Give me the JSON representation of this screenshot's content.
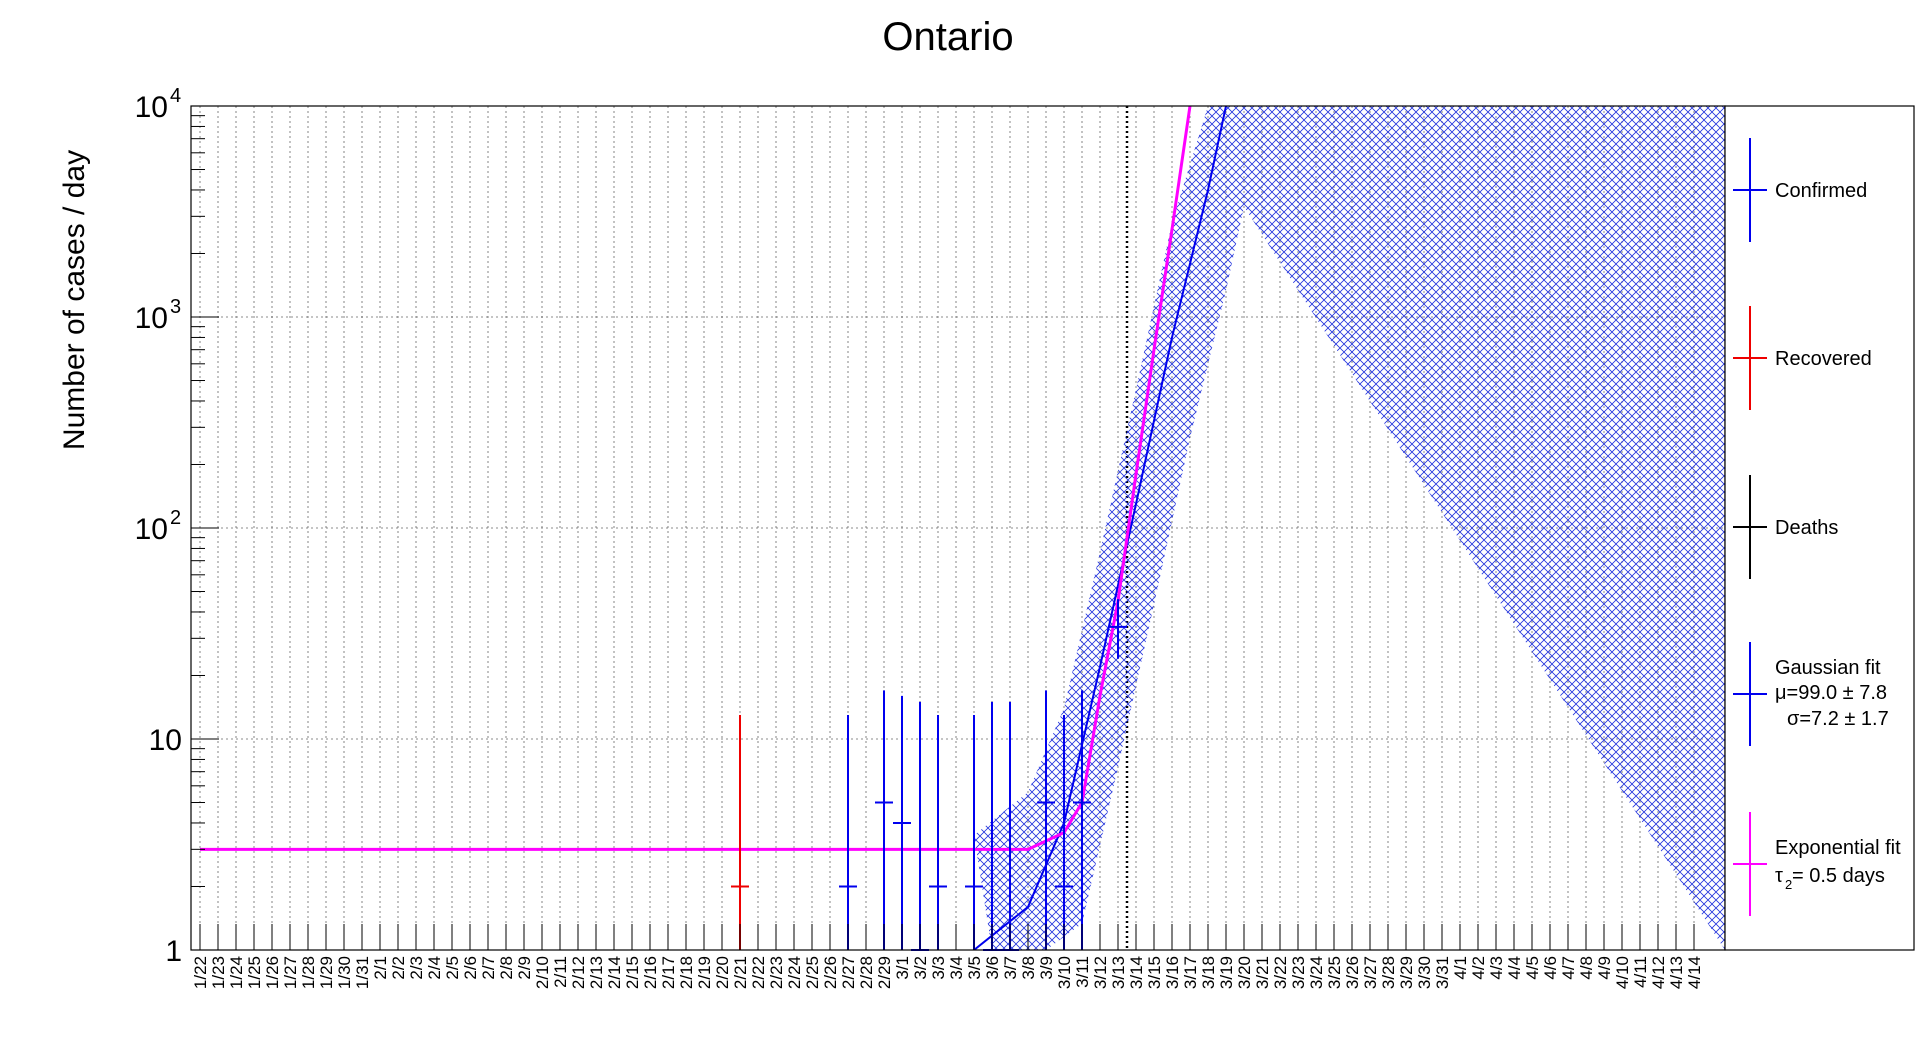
{
  "chart_data": {
    "type": "line",
    "title": "Ontario",
    "ylabel": "Number of cases / day",
    "xlabel": "",
    "y_scale": "log",
    "ylim": [
      1,
      10000
    ],
    "y_ticks": [
      {
        "value": 1,
        "label": "1",
        "exp": ""
      },
      {
        "value": 10,
        "label": "10",
        "exp": ""
      },
      {
        "value": 100,
        "label": "10",
        "exp": "2"
      },
      {
        "value": 1000,
        "label": "10",
        "exp": "3"
      },
      {
        "value": 10000,
        "label": "10",
        "exp": "4"
      }
    ],
    "categories": [
      "1/22",
      "1/23",
      "1/24",
      "1/25",
      "1/26",
      "1/27",
      "1/28",
      "1/29",
      "1/30",
      "1/31",
      "2/1",
      "2/2",
      "2/3",
      "2/4",
      "2/5",
      "2/6",
      "2/7",
      "2/8",
      "2/9",
      "2/10",
      "2/11",
      "2/12",
      "2/13",
      "2/14",
      "2/15",
      "2/16",
      "2/17",
      "2/18",
      "2/19",
      "2/20",
      "2/21",
      "2/22",
      "2/23",
      "2/24",
      "2/25",
      "2/26",
      "2/27",
      "2/28",
      "2/29",
      "3/1",
      "3/2",
      "3/3",
      "3/4",
      "3/5",
      "3/6",
      "3/7",
      "3/8",
      "3/9",
      "3/10",
      "3/11",
      "3/12",
      "3/13",
      "3/14",
      "3/15",
      "3/16",
      "3/17",
      "3/18",
      "3/19",
      "3/20",
      "3/21",
      "3/22",
      "3/23",
      "3/24",
      "3/25",
      "3/26",
      "3/27",
      "3/28",
      "3/29",
      "3/30",
      "3/31",
      "4/1",
      "4/2",
      "4/3",
      "4/4",
      "4/5",
      "4/6",
      "4/7",
      "4/8",
      "4/9",
      "4/10",
      "4/11",
      "4/12",
      "4/13",
      "4/14"
    ],
    "grid": true,
    "vline": {
      "x": "3/14",
      "style": "dotted"
    },
    "series": [
      {
        "name": "Confirmed",
        "color": "#0000ee",
        "style": "points-errorbars",
        "points": [
          {
            "x": "2/27",
            "y": 2,
            "ylow": 1,
            "yhigh": 13
          },
          {
            "x": "2/29",
            "y": 5,
            "ylow": 1,
            "yhigh": 17
          },
          {
            "x": "3/1",
            "y": 4,
            "ylow": 1,
            "yhigh": 16
          },
          {
            "x": "3/2",
            "y": 1,
            "ylow": 1,
            "yhigh": 15
          },
          {
            "x": "3/3",
            "y": 2,
            "ylow": 1,
            "yhigh": 13
          },
          {
            "x": "3/5",
            "y": 2,
            "ylow": 1,
            "yhigh": 13
          },
          {
            "x": "3/6",
            "y": 1,
            "ylow": 1,
            "yhigh": 15
          },
          {
            "x": "3/7",
            "y": 1,
            "ylow": 1,
            "yhigh": 15
          },
          {
            "x": "3/9",
            "y": 5,
            "ylow": 1,
            "yhigh": 17
          },
          {
            "x": "3/10",
            "y": 2,
            "ylow": 1,
            "yhigh": 13
          },
          {
            "x": "3/11",
            "y": 5,
            "ylow": 1,
            "yhigh": 17
          },
          {
            "x": "3/13",
            "y": 34,
            "ylow": 24,
            "yhigh": 46
          }
        ]
      },
      {
        "name": "Recovered",
        "color": "#ee0000",
        "style": "points-errorbars",
        "points": [
          {
            "x": "2/21",
            "y": 2,
            "ylow": 1,
            "yhigh": 13
          }
        ]
      },
      {
        "name": "Deaths",
        "color": "#000000",
        "style": "points-errorbars",
        "points": []
      },
      {
        "name": "Gaussian fit",
        "color": "#0000ee",
        "style": "curve-with-band",
        "params": {
          "mu": "99.0 ± 7.8",
          "sigma": "7.2 ± 1.7"
        },
        "curve": [
          {
            "x": "3/5",
            "y": 1
          },
          {
            "x": "3/8",
            "y": 1.6
          },
          {
            "x": "3/10",
            "y": 4
          },
          {
            "x": "3/12",
            "y": 22
          },
          {
            "x": "3/14",
            "y": 130
          },
          {
            "x": "3/16",
            "y": 800
          },
          {
            "x": "3/18",
            "y": 4000
          },
          {
            "x": "3/19",
            "y": 10000
          }
        ]
      },
      {
        "name": "Exponential fit",
        "color": "#ff00ff",
        "style": "curve",
        "params": {
          "tau2": "0.5 days"
        },
        "curve": [
          {
            "x": "1/22",
            "y": 3
          },
          {
            "x": "3/8",
            "y": 3
          },
          {
            "x": "3/10",
            "y": 3.6
          },
          {
            "x": "3/11",
            "y": 5
          },
          {
            "x": "3/12",
            "y": 16
          },
          {
            "x": "3/13",
            "y": 45
          },
          {
            "x": "3/14",
            "y": 180
          },
          {
            "x": "3/15",
            "y": 700
          },
          {
            "x": "3/16",
            "y": 2600
          },
          {
            "x": "3/17",
            "y": 10000
          }
        ]
      }
    ],
    "legend_placement": "right",
    "legend": [
      {
        "label": "Confirmed",
        "color": "#0000ee"
      },
      {
        "label": "Recovered",
        "color": "#ee0000"
      },
      {
        "label": "Deaths",
        "color": "#000000"
      },
      {
        "label": "Gaussian fit",
        "line2": "μ=99.0 ± 7.8",
        "line3": "σ=7.2 ± 1.7",
        "color": "#0000ee"
      },
      {
        "label": "Exponential fit",
        "line2_base": "τ",
        "line2_sub": "2",
        "line2_rest": " = 0.5 days",
        "color": "#ff00ff"
      }
    ]
  }
}
